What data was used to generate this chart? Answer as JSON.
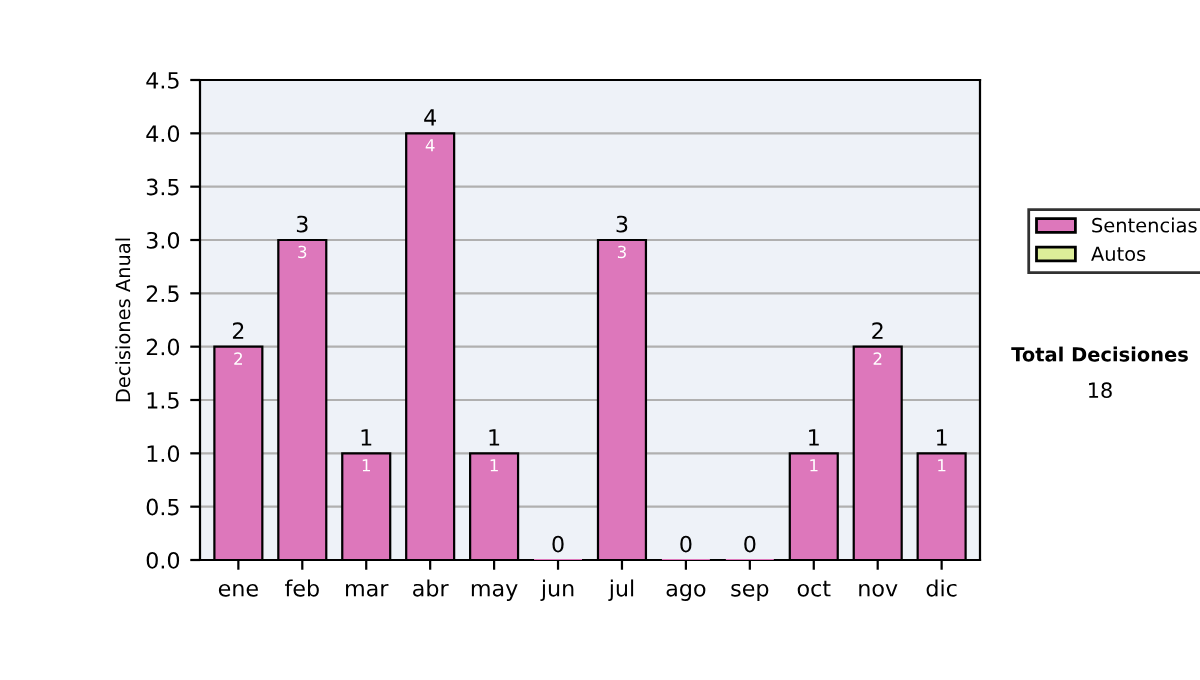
{
  "chart_data": {
    "type": "bar",
    "ylabel": "Decisiones Anual",
    "categories": [
      "ene",
      "feb",
      "mar",
      "abr",
      "may",
      "jun",
      "jul",
      "ago",
      "sep",
      "oct",
      "nov",
      "dic"
    ],
    "series": [
      {
        "name": "Sentencias",
        "color": "#dd77bb",
        "values": [
          2,
          3,
          1,
          4,
          1,
          0,
          3,
          0,
          0,
          1,
          2,
          1
        ],
        "value_labels": [
          "2",
          "3",
          "1",
          "4",
          "1",
          null,
          "3",
          null,
          null,
          "1",
          "2",
          "1"
        ]
      },
      {
        "name": "Autos",
        "color": "#ddee99",
        "values": [
          null,
          null,
          null,
          null,
          null,
          null,
          null,
          null,
          null,
          null,
          null,
          null
        ]
      }
    ],
    "stacked": true,
    "totals": [
      "2",
      "3",
      "1",
      "4",
      "1",
      "0",
      "3",
      "0",
      "0",
      "1",
      "2",
      "1"
    ],
    "ylim": [
      0,
      4.5
    ],
    "yticks": [
      {
        "value": 0,
        "label": "0.0"
      },
      {
        "value": 0.5,
        "label": "0.5"
      },
      {
        "value": 1,
        "label": "1.0"
      },
      {
        "value": 1.5,
        "label": "1.5"
      },
      {
        "value": 2,
        "label": "2.0"
      },
      {
        "value": 2.5,
        "label": "2.5"
      },
      {
        "value": 3,
        "label": "3.0"
      },
      {
        "value": 3.5,
        "label": "3.5"
      },
      {
        "value": 4,
        "label": "4.0"
      },
      {
        "value": 4.5,
        "label": "4.5"
      }
    ],
    "grid": "y",
    "legend": "right",
    "annotations": [
      "Total Decisiones",
      "18"
    ]
  }
}
